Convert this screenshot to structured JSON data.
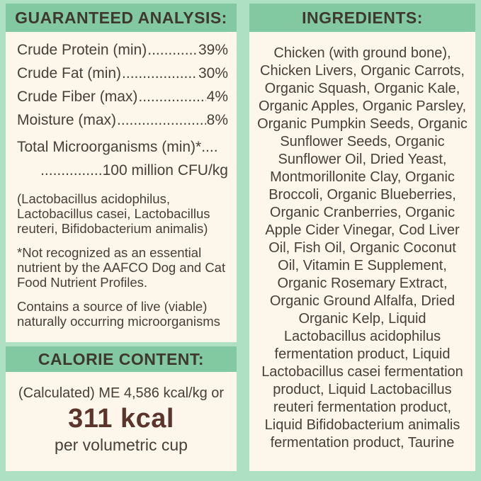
{
  "guaranteed_analysis": {
    "title": "GUARANTEED ANALYSIS:",
    "leader_dots": "................................................",
    "rows": [
      {
        "label": "Crude Protein (min)",
        "value": " 39%"
      },
      {
        "label": "Crude Fat (min)",
        "value": " 30%"
      },
      {
        "label": "Crude Fiber (max)",
        "value": "4%"
      },
      {
        "label": "Moisture (max)",
        "value": "8%"
      }
    ],
    "micro_line1": "Total Microorganisms (min)*....",
    "micro_line2": "...............100 million CFU/kg",
    "probiotics_note": "(Lactobacillus acidophilus, Lactobacillus casei, Lactobacillus reuteri, Bifidobacterium animalis)",
    "footnote": "*Not recognized as an essential nutrient by the AAFCO Dog and Cat Food Nutrient Profiles.",
    "viable_note": "Contains a source of live (viable) naturally occurring microorganisms"
  },
  "calorie_content": {
    "title": "CALORIE CONTENT:",
    "line1": "(Calculated) ME 4,586 kcal/kg or",
    "kcal": "311 kcal",
    "per": "per volumetric cup"
  },
  "ingredients": {
    "title": "INGREDIENTS:",
    "text": "Chicken (with ground bone), Chicken Livers, Organic Carrots, Organic Squash, Organic Kale, Organic Apples, Organic Parsley, Organic Pumpkin Seeds, Organic Sunflower Seeds, Organic Sunflower Oil, Dried Yeast, Montmorillonite Clay, Organic Broccoli, Organic Blueberries, Organic Cranberries, Organic Apple Cider Vinegar, Cod Liver Oil, Fish Oil, Organic Coconut Oil, Vitamin E Supplement, Organic Rosemary Extract, Organic Ground Alfalfa, Dried Organic Kelp, Liquid Lactobacillus acidophilus fermentation product, Liquid Lactobacillus casei fermentation product, Liquid Lactobacillus reuteri fermentation product, Liquid Bifidobacterium animalis fermentation product, Taurine"
  },
  "colors": {
    "border_mint": "#aee0c4",
    "header_green": "#82c9a2",
    "panel_cream": "#fcf7ea",
    "text_brown": "#46403a",
    "kcal_brown": "#5b352b"
  }
}
